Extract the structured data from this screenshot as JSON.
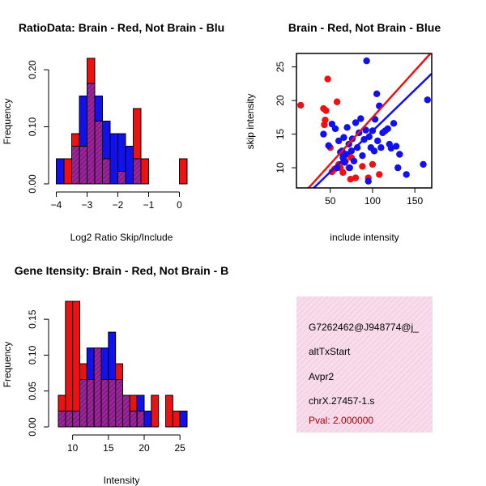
{
  "colors": {
    "red": "#ee1111",
    "blue": "#1111ee",
    "purple": "#8b1a8b",
    "pink_bg": "#f8dceb",
    "pval": "#aa0000"
  },
  "chart_data": [
    {
      "type": "bar",
      "title": "RatioData: Brain - Red, Not Brain - Blu",
      "xlabel": "Log2 Ratio Skip/Include",
      "ylabel": "Frequency",
      "xlim": [
        -4.0,
        0.25
      ],
      "ylim": [
        0,
        0.22
      ],
      "xticks": [
        -4,
        -3,
        -2,
        -1,
        0
      ],
      "xtick_labels": [
        "−4",
        "−3",
        "−2",
        "−1",
        "0"
      ],
      "yticks": [
        0.0,
        0.1,
        0.2
      ],
      "ytick_labels": [
        "0.00",
        "0.10",
        "0.20"
      ],
      "bin_width": 0.25,
      "series": [
        {
          "name": "Brain",
          "color": "red",
          "bins": [
            [
              -3.75,
              -3.5,
              0.044
            ],
            [
              -3.5,
              -3.25,
              0.088
            ],
            [
              -3.25,
              -3.0,
              0.066
            ],
            [
              -3.0,
              -2.75,
              0.22
            ],
            [
              -2.75,
              -2.5,
              0.11
            ],
            [
              -2.5,
              -2.25,
              0.044
            ],
            [
              -2.0,
              -1.75,
              0.022
            ],
            [
              -1.5,
              -1.25,
              0.132
            ],
            [
              -1.25,
              -1.0,
              0.044
            ],
            [
              0.0,
              0.25,
              0.044
            ]
          ]
        },
        {
          "name": "Not Brain",
          "color": "blue",
          "bins": [
            [
              -4.0,
              -3.75,
              0.044
            ],
            [
              -3.5,
              -3.25,
              0.066
            ],
            [
              -3.25,
              -3.0,
              0.154
            ],
            [
              -3.0,
              -2.75,
              0.176
            ],
            [
              -2.75,
              -2.5,
              0.154
            ],
            [
              -2.5,
              -2.25,
              0.11
            ],
            [
              -2.25,
              -2.0,
              0.088
            ],
            [
              -2.0,
              -1.75,
              0.088
            ],
            [
              -1.75,
              -1.5,
              0.066
            ],
            [
              -1.5,
              -1.25,
              0.044
            ]
          ]
        }
      ]
    },
    {
      "type": "scatter",
      "title": "Brain - Red, Not Brain - Blue",
      "xlabel": "include intensity",
      "ylabel": "skip intensity",
      "xlim": [
        10,
        170
      ],
      "ylim": [
        7,
        27
      ],
      "xticks": [
        50,
        100,
        150
      ],
      "yticks": [
        10,
        15,
        20,
        25
      ],
      "series": [
        {
          "name": "Brain",
          "color": "red",
          "points": [
            [
              15,
              19.3
            ],
            [
              42,
              18.8
            ],
            [
              44,
              17.1
            ],
            [
              45,
              18.5
            ],
            [
              43,
              16.4
            ],
            [
              47,
              23.2
            ],
            [
              50,
              13.0
            ],
            [
              52,
              9.4
            ],
            [
              55,
              9.8
            ],
            [
              58,
              19.8
            ],
            [
              60,
              10.5
            ],
            [
              62,
              10.0
            ],
            [
              65,
              9.3
            ],
            [
              68,
              11.0
            ],
            [
              70,
              12.0
            ],
            [
              72,
              10.0
            ],
            [
              74,
              8.3
            ],
            [
              75,
              11.5
            ],
            [
              80,
              8.5
            ],
            [
              88,
              10.2
            ],
            [
              95,
              8.5
            ],
            [
              100,
              10.5
            ],
            [
              108,
              9.0
            ]
          ],
          "fit": [
            [
              10,
              5.0
            ],
            [
              170,
              27.2
            ]
          ]
        },
        {
          "name": "Not Brain",
          "color": "blue",
          "points": [
            [
              42,
              15.0
            ],
            [
              48,
              13.3
            ],
            [
              52,
              16.5
            ],
            [
              56,
              15.8
            ],
            [
              58,
              10.0
            ],
            [
              60,
              14.0
            ],
            [
              62,
              12.3
            ],
            [
              64,
              12.5
            ],
            [
              65,
              11.5
            ],
            [
              66,
              14.5
            ],
            [
              67,
              10.8
            ],
            [
              68,
              12.0
            ],
            [
              70,
              16.0
            ],
            [
              72,
              13.5
            ],
            [
              73,
              10.0
            ],
            [
              75,
              12.5
            ],
            [
              76,
              14.3
            ],
            [
              78,
              11.0
            ],
            [
              80,
              16.7
            ],
            [
              82,
              13.0
            ],
            [
              84,
              15.2
            ],
            [
              86,
              17.3
            ],
            [
              88,
              11.8
            ],
            [
              90,
              14.2
            ],
            [
              92,
              15.6
            ],
            [
              93,
              25.9
            ],
            [
              95,
              8.0
            ],
            [
              96,
              14.6
            ],
            [
              98,
              13.0
            ],
            [
              100,
              15.5
            ],
            [
              102,
              12.5
            ],
            [
              103,
              17.2
            ],
            [
              105,
              21.0
            ],
            [
              106,
              14.0
            ],
            [
              108,
              19.2
            ],
            [
              110,
              13.0
            ],
            [
              112,
              15.2
            ],
            [
              115,
              15.5
            ],
            [
              118,
              15.8
            ],
            [
              120,
              13.5
            ],
            [
              122,
              12.9
            ],
            [
              125,
              16.6
            ],
            [
              128,
              13.2
            ],
            [
              130,
              10.0
            ],
            [
              132,
              12.0
            ],
            [
              140,
              9.0
            ],
            [
              160,
              10.5
            ],
            [
              165,
              20.1
            ]
          ],
          "fit": [
            [
              10,
              4.5
            ],
            [
              170,
              24.0
            ]
          ]
        }
      ]
    },
    {
      "type": "bar",
      "title": "Gene Itensity: Brain - Red, Not Brain - B",
      "xlabel": "Intensity",
      "ylabel": "Frequency",
      "xlim": [
        8,
        26
      ],
      "ylim": [
        0,
        0.175
      ],
      "xticks": [
        10,
        15,
        20,
        25
      ],
      "yticks": [
        0.0,
        0.05,
        0.1,
        0.15
      ],
      "ytick_labels": [
        "0.00",
        "0.05",
        "0.10",
        "0.15"
      ],
      "bin_width": 1,
      "series": [
        {
          "name": "Brain",
          "color": "red",
          "bins": [
            [
              8,
              9,
              0.044
            ],
            [
              9,
              10,
              0.175
            ],
            [
              10,
              11,
              0.175
            ],
            [
              11,
              12,
              0.088
            ],
            [
              12,
              13,
              0.066
            ],
            [
              13,
              14,
              0.11
            ],
            [
              14,
              15,
              0.066
            ],
            [
              15,
              16,
              0.066
            ],
            [
              16,
              17,
              0.088
            ],
            [
              17,
              18,
              0.044
            ],
            [
              18,
              19,
              0.044
            ],
            [
              19,
              20,
              0.022
            ],
            [
              21,
              22,
              0.044
            ],
            [
              23,
              24,
              0.044
            ],
            [
              24,
              25,
              0.022
            ]
          ]
        },
        {
          "name": "Not Brain",
          "color": "blue",
          "bins": [
            [
              8,
              9,
              0.022
            ],
            [
              9,
              10,
              0.022
            ],
            [
              10,
              11,
              0.022
            ],
            [
              11,
              12,
              0.066
            ],
            [
              12,
              13,
              0.11
            ],
            [
              13,
              14,
              0.11
            ],
            [
              14,
              15,
              0.11
            ],
            [
              15,
              16,
              0.132
            ],
            [
              16,
              17,
              0.066
            ],
            [
              17,
              18,
              0.044
            ],
            [
              18,
              19,
              0.022
            ],
            [
              19,
              20,
              0.044
            ],
            [
              20,
              21,
              0.022
            ],
            [
              25,
              26,
              0.022
            ]
          ]
        }
      ]
    }
  ],
  "info_panel": {
    "lines": [
      "G7262462@J948774@j_",
      "altTxStart",
      "Avpr2",
      "chrX.27457-1.s"
    ],
    "pval": "Pval: 2.000000"
  }
}
